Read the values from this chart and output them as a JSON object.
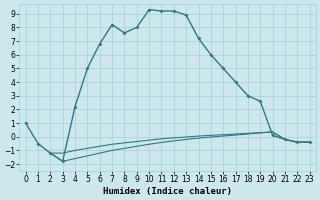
{
  "xlabel": "Humidex (Indice chaleur)",
  "background_color": "#cde8ed",
  "grid_color": "#aacdd5",
  "line_color": "#2d7b7b",
  "xlim": [
    -0.5,
    23.5
  ],
  "ylim": [
    -2.5,
    9.7
  ],
  "xticks": [
    0,
    1,
    2,
    3,
    4,
    5,
    6,
    7,
    8,
    9,
    10,
    11,
    12,
    13,
    14,
    15,
    16,
    17,
    18,
    19,
    20,
    21,
    22,
    23
  ],
  "yticks": [
    -2,
    -1,
    0,
    1,
    2,
    3,
    4,
    5,
    6,
    7,
    8,
    9
  ],
  "main_x": [
    0,
    1,
    2,
    3,
    4,
    5,
    6,
    7,
    8,
    9,
    10,
    11,
    12,
    13,
    14,
    15,
    16,
    17,
    18,
    19,
    20,
    21,
    22,
    23
  ],
  "main_y": [
    1.0,
    -0.5,
    -1.2,
    -1.8,
    2.2,
    5.0,
    6.8,
    8.2,
    7.6,
    8.0,
    9.3,
    9.2,
    9.2,
    8.9,
    7.2,
    6.0,
    5.0,
    4.0,
    3.0,
    2.6,
    0.1,
    -0.2,
    -0.4,
    -0.4
  ],
  "line2_x": [
    2,
    3,
    4,
    5,
    6,
    7,
    8,
    9,
    10,
    11,
    12,
    13,
    14,
    15,
    16,
    17,
    18,
    19,
    20,
    21,
    22,
    23
  ],
  "line2_y": [
    -1.2,
    -1.2,
    -1.0,
    -0.85,
    -0.7,
    -0.55,
    -0.45,
    -0.35,
    -0.25,
    -0.15,
    -0.08,
    -0.02,
    0.05,
    0.1,
    0.15,
    0.2,
    0.25,
    0.3,
    0.35,
    -0.2,
    -0.4,
    -0.4
  ],
  "line3_x": [
    2,
    3,
    4,
    5,
    6,
    7,
    8,
    9,
    10,
    11,
    12,
    13,
    14,
    15,
    16,
    17,
    18,
    19,
    20,
    21,
    22,
    23
  ],
  "line3_y": [
    -1.2,
    -1.8,
    -1.6,
    -1.4,
    -1.2,
    -1.0,
    -0.85,
    -0.7,
    -0.55,
    -0.42,
    -0.3,
    -0.2,
    -0.1,
    -0.02,
    0.05,
    0.12,
    0.2,
    0.28,
    0.35,
    -0.2,
    -0.4,
    -0.4
  ]
}
